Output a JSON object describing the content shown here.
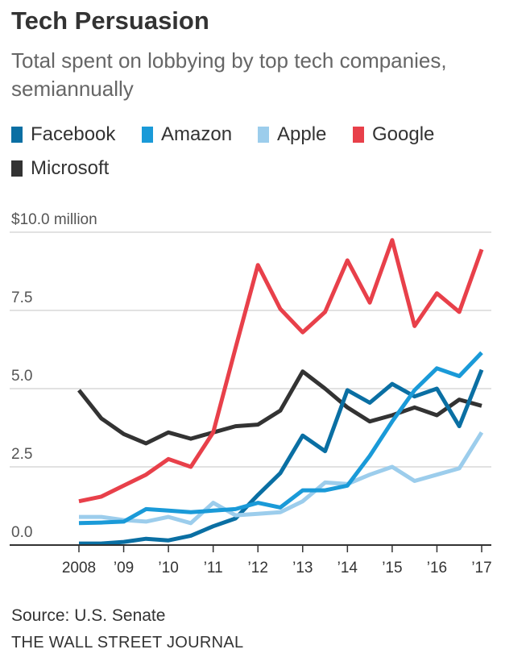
{
  "header": {
    "title": "Tech Persuasion",
    "subtitle": "Total spent on lobbying by top tech companies, semiannually"
  },
  "footer": {
    "source": "Source: U.S. Senate",
    "brand": "THE WALL STREET JOURNAL"
  },
  "colors": {
    "Facebook": "#0a6fa3",
    "Amazon": "#1a9ad8",
    "Apple": "#9ccdec",
    "Google": "#e8404a",
    "Microsoft": "#333333",
    "grid": "#d9d9d9",
    "axis": "#333333"
  },
  "chart_data": {
    "type": "line",
    "title": "Tech Persuasion",
    "subtitle": "Total spent on lobbying by top tech companies, semiannually",
    "ylabel": "$ million",
    "ylim": [
      0,
      10
    ],
    "yticks": [
      {
        "value": 0,
        "label": "0.0"
      },
      {
        "value": 2.5,
        "label": "2.5"
      },
      {
        "value": 5,
        "label": "5.0"
      },
      {
        "value": 7.5,
        "label": "7.5"
      },
      {
        "value": 10,
        "label": "$10.0 million"
      }
    ],
    "xlim": [
      0,
      18
    ],
    "xticks": [
      {
        "index": 0,
        "label": "2008"
      },
      {
        "index": 2,
        "label": "’09"
      },
      {
        "index": 4,
        "label": "’10"
      },
      {
        "index": 6,
        "label": "’11"
      },
      {
        "index": 8,
        "label": "’12"
      },
      {
        "index": 10,
        "label": "’13"
      },
      {
        "index": 12,
        "label": "’14"
      },
      {
        "index": 14,
        "label": "’15"
      },
      {
        "index": 16,
        "label": "’16"
      },
      {
        "index": 18,
        "label": "’17"
      }
    ],
    "grid": true,
    "legend_position": "top",
    "series": [
      {
        "name": "Microsoft",
        "values": [
          4.95,
          4.05,
          3.55,
          3.25,
          3.6,
          3.4,
          3.6,
          3.8,
          3.85,
          4.3,
          5.55,
          5.0,
          4.4,
          3.95,
          4.15,
          4.4,
          4.15,
          4.65,
          4.45
        ]
      },
      {
        "name": "Facebook",
        "values": [
          0.05,
          0.05,
          0.1,
          0.2,
          0.15,
          0.3,
          0.6,
          0.85,
          1.6,
          2.3,
          3.5,
          3.0,
          4.95,
          4.55,
          5.15,
          4.75,
          5.0,
          3.8,
          5.6
        ]
      },
      {
        "name": "Apple",
        "values": [
          0.9,
          0.9,
          0.8,
          0.75,
          0.9,
          0.7,
          1.35,
          0.95,
          1.0,
          1.05,
          1.4,
          2.0,
          1.95,
          2.25,
          2.5,
          2.05,
          2.25,
          2.45,
          3.6
        ]
      },
      {
        "name": "Amazon",
        "values": [
          0.7,
          0.72,
          0.75,
          1.15,
          1.1,
          1.05,
          1.1,
          1.15,
          1.35,
          1.2,
          1.75,
          1.75,
          1.9,
          2.85,
          3.95,
          4.95,
          5.65,
          5.4,
          6.15
        ]
      },
      {
        "name": "Google",
        "values": [
          1.4,
          1.55,
          1.9,
          2.25,
          2.75,
          2.5,
          3.6,
          6.3,
          8.95,
          7.55,
          6.8,
          7.45,
          9.1,
          7.75,
          9.75,
          7.0,
          8.05,
          7.45,
          9.45
        ]
      }
    ],
    "legend": [
      "Facebook",
      "Amazon",
      "Apple",
      "Google",
      "Microsoft"
    ]
  }
}
